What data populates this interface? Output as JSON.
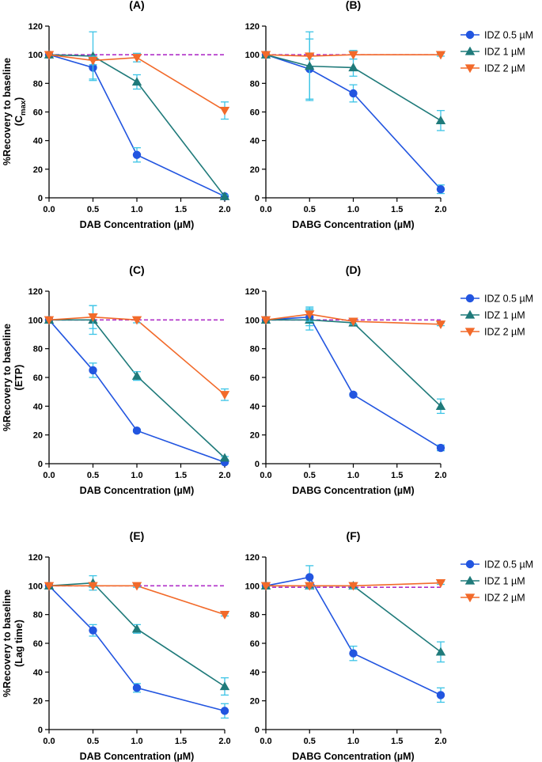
{
  "colors": {
    "idz05": "#2255e0",
    "idz1": "#1f7a7a",
    "idz2": "#f26a2a",
    "error_bar": "#3cc4e6",
    "baseline": "#b030c8"
  },
  "legend": [
    {
      "label": "IDZ 0.5 µM",
      "marker": "circle",
      "color": "#2255e0"
    },
    {
      "label": "IDZ 1 µM",
      "marker": "triangle-up",
      "color": "#1f7a7a"
    },
    {
      "label": "IDZ 2 µM",
      "marker": "triangle-down",
      "color": "#f26a2a"
    }
  ],
  "row_ylabels": [
    {
      "line1": "%Recovery to baseline",
      "line2_main": "(C",
      "line2_sub": "max",
      "line2_end": ")"
    },
    {
      "line1": "%Recovery to baseline",
      "line2_main": "(ETP)",
      "line2_sub": "",
      "line2_end": ""
    },
    {
      "line1": "%Recovery to baseline",
      "line2_main": "(Lag time)",
      "line2_sub": "",
      "line2_end": ""
    }
  ],
  "chart_data": [
    {
      "type": "line",
      "title": "(A)",
      "xlabel": "DAB Concentration (µM)",
      "xlim": [
        0,
        2
      ],
      "ylim": [
        0,
        120
      ],
      "xticks": [
        "0.0",
        "0.5",
        "1.0",
        "1.5",
        "2.0"
      ],
      "xtick_values": [
        0,
        0.5,
        1,
        1.5,
        2
      ],
      "yticks": [
        "0",
        "20",
        "40",
        "60",
        "80",
        "100",
        "120"
      ],
      "ytick_values": [
        0,
        20,
        40,
        60,
        80,
        100,
        120
      ],
      "baseline": 100,
      "series": [
        {
          "name": "IDZ 0.5 µM",
          "x": [
            0,
            0.5,
            1,
            2
          ],
          "y": [
            100,
            91,
            30,
            1
          ],
          "err": [
            0,
            8,
            5,
            1
          ]
        },
        {
          "name": "IDZ 1 µM",
          "x": [
            0,
            0.5,
            1,
            2
          ],
          "y": [
            100,
            99,
            81,
            1
          ],
          "err": [
            0,
            17,
            5,
            1
          ]
        },
        {
          "name": "IDZ 2 µM",
          "x": [
            0,
            0.5,
            1,
            2
          ],
          "y": [
            100,
            96,
            98,
            61
          ],
          "err": [
            0,
            3,
            3,
            6
          ]
        }
      ]
    },
    {
      "type": "line",
      "title": "(B)",
      "xlabel": "DABG Concentration (µM)",
      "xlim": [
        0,
        2
      ],
      "ylim": [
        0,
        120
      ],
      "xticks": [
        "0.0",
        "0.5",
        "1.0",
        "1.5",
        "2.0"
      ],
      "xtick_values": [
        0,
        0.5,
        1,
        1.5,
        2
      ],
      "yticks": [
        "0",
        "20",
        "40",
        "60",
        "80",
        "100",
        "120"
      ],
      "ytick_values": [
        0,
        20,
        40,
        60,
        80,
        100,
        120
      ],
      "baseline": 100,
      "series": [
        {
          "name": "IDZ 0.5 µM",
          "x": [
            0,
            0.5,
            1,
            2
          ],
          "y": [
            100,
            90,
            73,
            6
          ],
          "err": [
            0,
            21,
            6,
            3
          ]
        },
        {
          "name": "IDZ 1 µM",
          "x": [
            0,
            0.5,
            1,
            2
          ],
          "y": [
            100,
            92,
            91,
            54
          ],
          "err": [
            0,
            24,
            6,
            7
          ]
        },
        {
          "name": "IDZ 2 µM",
          "x": [
            0,
            0.5,
            1,
            2
          ],
          "y": [
            100,
            99,
            100,
            100
          ],
          "err": [
            0,
            2,
            3,
            1
          ]
        }
      ]
    },
    {
      "type": "line",
      "title": "(C)",
      "xlabel": "DAB Concentration (µM)",
      "xlim": [
        0,
        2
      ],
      "ylim": [
        0,
        120
      ],
      "xticks": [
        "0.0",
        "0.5",
        "1.0",
        "1.5",
        "2.0"
      ],
      "xtick_values": [
        0,
        0.5,
        1,
        1.5,
        2
      ],
      "yticks": [
        "0",
        "20",
        "40",
        "60",
        "80",
        "100",
        "120"
      ],
      "ytick_values": [
        0,
        20,
        40,
        60,
        80,
        100,
        120
      ],
      "baseline": 100,
      "series": [
        {
          "name": "IDZ 0.5 µM",
          "x": [
            0,
            0.5,
            1,
            2
          ],
          "y": [
            100,
            65,
            23,
            1
          ],
          "err": [
            0,
            5,
            1,
            1
          ]
        },
        {
          "name": "IDZ 1 µM",
          "x": [
            0,
            0.5,
            1,
            2
          ],
          "y": [
            100,
            100,
            61,
            4
          ],
          "err": [
            0,
            10,
            3,
            1
          ]
        },
        {
          "name": "IDZ 2 µM",
          "x": [
            0,
            0.5,
            1,
            2
          ],
          "y": [
            100,
            102,
            100,
            48
          ],
          "err": [
            0,
            8,
            2,
            4
          ]
        }
      ]
    },
    {
      "type": "line",
      "title": "(D)",
      "xlabel": "DABG Concentration (µM)",
      "xlim": [
        0,
        2
      ],
      "ylim": [
        0,
        120
      ],
      "xticks": [
        "0.0",
        "0.5",
        "1.0",
        "1.5",
        "2.0"
      ],
      "xtick_values": [
        0,
        0.5,
        1,
        1.5,
        2
      ],
      "yticks": [
        "0",
        "20",
        "40",
        "60",
        "80",
        "100",
        "120"
      ],
      "ytick_values": [
        0,
        20,
        40,
        60,
        80,
        100,
        120
      ],
      "baseline": 100,
      "series": [
        {
          "name": "IDZ 0.5 µM",
          "x": [
            0,
            0.5,
            1,
            2
          ],
          "y": [
            100,
            102,
            48,
            11
          ],
          "err": [
            0,
            6,
            1,
            2
          ]
        },
        {
          "name": "IDZ 1 µM",
          "x": [
            0,
            0.5,
            1,
            2
          ],
          "y": [
            100,
            100,
            98,
            40
          ],
          "err": [
            0,
            7,
            2,
            5
          ]
        },
        {
          "name": "IDZ 2 µM",
          "x": [
            0,
            0.5,
            1,
            2
          ],
          "y": [
            100,
            104,
            99,
            97
          ],
          "err": [
            0,
            5,
            2,
            1
          ]
        }
      ]
    },
    {
      "type": "line",
      "title": "(E)",
      "xlabel": "DAB Concentration (µM)",
      "xlim": [
        0,
        2
      ],
      "ylim": [
        0,
        120
      ],
      "xticks": [
        "0.0",
        "0.5",
        "1.0",
        "1.5",
        "2.0"
      ],
      "xtick_values": [
        0,
        0.5,
        1,
        1.5,
        2
      ],
      "yticks": [
        "0",
        "20",
        "40",
        "60",
        "80",
        "100",
        "120"
      ],
      "ytick_values": [
        0,
        20,
        40,
        60,
        80,
        100,
        120
      ],
      "baseline": 100,
      "series": [
        {
          "name": "IDZ 0.5 µM",
          "x": [
            0,
            0.5,
            1,
            2
          ],
          "y": [
            100,
            69,
            29,
            13
          ],
          "err": [
            0,
            4,
            3,
            5
          ]
        },
        {
          "name": "IDZ 1 µM",
          "x": [
            0,
            0.5,
            1,
            2
          ],
          "y": [
            100,
            102,
            70,
            30
          ],
          "err": [
            0,
            5,
            3,
            6
          ]
        },
        {
          "name": "IDZ 2 µM",
          "x": [
            0,
            0.5,
            1,
            2
          ],
          "y": [
            100,
            100,
            100,
            80
          ],
          "err": [
            0,
            1,
            1,
            1
          ]
        }
      ]
    },
    {
      "type": "line",
      "title": "(F)",
      "xlabel": "DABG Concentration (µM)",
      "xlim": [
        0,
        2
      ],
      "ylim": [
        0,
        120
      ],
      "xticks": [
        "0.0",
        "0.5",
        "1.0",
        "1.5",
        "2.0"
      ],
      "xtick_values": [
        0,
        0.5,
        1,
        1.5,
        2
      ],
      "yticks": [
        "0",
        "20",
        "40",
        "60",
        "80",
        "100",
        "120"
      ],
      "ytick_values": [
        0,
        20,
        40,
        60,
        80,
        100,
        120
      ],
      "baseline": 99,
      "series": [
        {
          "name": "IDZ 0.5 µM",
          "x": [
            0,
            0.5,
            1,
            2
          ],
          "y": [
            100,
            106,
            53,
            24
          ],
          "err": [
            0,
            8,
            5,
            5
          ]
        },
        {
          "name": "IDZ 1 µM",
          "x": [
            0,
            0.5,
            1,
            2
          ],
          "y": [
            100,
            100,
            100,
            54
          ],
          "err": [
            0,
            1,
            2,
            7
          ]
        },
        {
          "name": "IDZ 2 µM",
          "x": [
            0,
            0.5,
            1,
            2
          ],
          "y": [
            100,
            100,
            100,
            102
          ],
          "err": [
            0,
            2,
            2,
            1
          ]
        }
      ]
    }
  ]
}
